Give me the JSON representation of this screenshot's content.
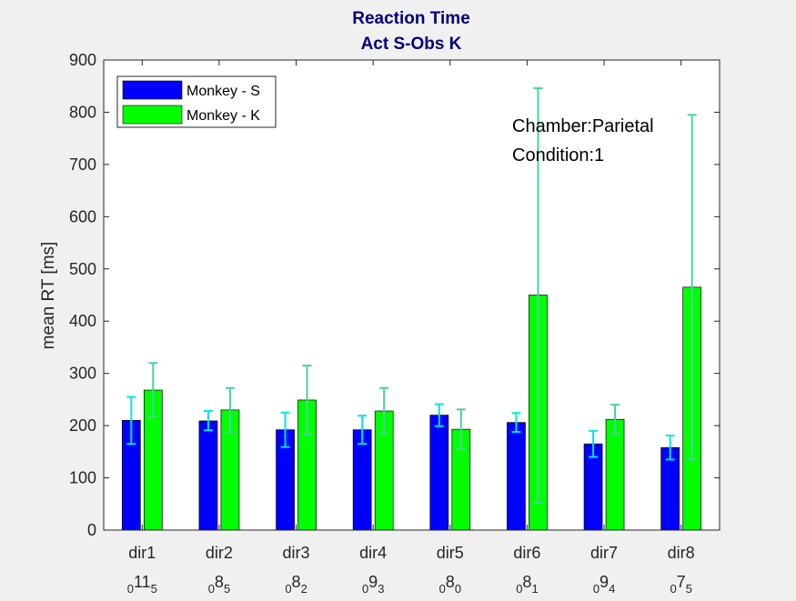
{
  "chart_data": {
    "type": "bar",
    "title": [
      "Reaction Time",
      "Act S-Obs K"
    ],
    "xlabel": "",
    "ylabel": "mean RT [ms]",
    "ylim": [
      0,
      900
    ],
    "yticks": [
      0,
      100,
      200,
      300,
      400,
      500,
      600,
      700,
      800,
      900
    ],
    "grid": false,
    "legend_position": "top-left",
    "categories": [
      "dir1",
      "dir2",
      "dir3",
      "dir4",
      "dir5",
      "dir6",
      "dir7",
      "dir8"
    ],
    "category_sublabels": [
      {
        "left": "0",
        "mid": "11",
        "right": "5"
      },
      {
        "left": "0",
        "mid": "8",
        "right": "5"
      },
      {
        "left": "0",
        "mid": "8",
        "right": "2"
      },
      {
        "left": "0",
        "mid": "9",
        "right": "3"
      },
      {
        "left": "0",
        "mid": "8",
        "right": "0"
      },
      {
        "left": "0",
        "mid": "8",
        "right": "1"
      },
      {
        "left": "0",
        "mid": "9",
        "right": "4"
      },
      {
        "left": "0",
        "mid": "7",
        "right": "5"
      }
    ],
    "series": [
      {
        "name": "Monkey - S",
        "color": "#0000ff",
        "error_color": "#00e5ee",
        "values": [
          210,
          209,
          192,
          192,
          220,
          206,
          165,
          158
        ],
        "err_low": [
          165,
          191,
          159,
          165,
          199,
          188,
          140,
          135
        ],
        "err_high": [
          255,
          228,
          225,
          219,
          241,
          224,
          190,
          181
        ]
      },
      {
        "name": "Monkey - K",
        "color": "#00ff00",
        "error_color": "#48d1a0",
        "values": [
          268,
          230,
          249,
          228,
          193,
          450,
          212,
          465
        ],
        "err_low": [
          216,
          188,
          183,
          185,
          155,
          52,
          184,
          135
        ],
        "err_high": [
          320,
          272,
          315,
          272,
          231,
          846,
          240,
          795
        ]
      }
    ],
    "annotations": [
      "Chamber:Parietal",
      "Condition:1"
    ]
  }
}
